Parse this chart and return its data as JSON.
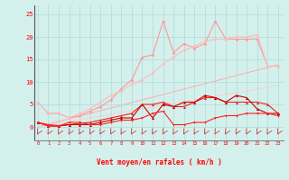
{
  "x": [
    0,
    1,
    2,
    3,
    4,
    5,
    6,
    7,
    8,
    9,
    10,
    11,
    12,
    13,
    14,
    15,
    16,
    17,
    18,
    19,
    20,
    21,
    22,
    23
  ],
  "background_color": "#d4f0ec",
  "grid_color": "#aaddda",
  "line_pink_spiky_y": [
    5.5,
    3.0,
    3.0,
    2.0,
    2.5,
    3.5,
    4.5,
    6.0,
    8.5,
    10.5,
    15.5,
    16.0,
    23.5,
    16.5,
    18.5,
    17.5,
    18.5,
    23.5,
    19.5,
    19.5,
    19.5,
    19.5,
    13.5,
    13.5
  ],
  "line_pink_spiky_color": "#ff9999",
  "line_pink_smooth_y": [
    5.5,
    3.0,
    3.0,
    2.0,
    3.0,
    4.0,
    5.5,
    7.0,
    8.0,
    9.5,
    10.5,
    12.0,
    14.0,
    15.5,
    17.0,
    18.0,
    19.0,
    19.5,
    19.5,
    20.0,
    20.0,
    20.5,
    13.5,
    13.5
  ],
  "line_pink_smooth_color": "#ffbbbb",
  "line_diag1_y": [
    0.0,
    0.6,
    1.2,
    1.8,
    2.4,
    3.0,
    3.6,
    4.2,
    4.8,
    5.4,
    6.0,
    6.6,
    7.2,
    7.8,
    8.4,
    9.0,
    9.6,
    10.2,
    10.8,
    11.4,
    12.0,
    12.6,
    13.2,
    13.8
  ],
  "line_diag1_color": "#ffaaaa",
  "line_diag2_y": [
    0.0,
    0.4,
    0.8,
    1.2,
    1.6,
    2.0,
    2.4,
    2.8,
    3.2,
    3.6,
    4.0,
    4.4,
    4.8,
    5.2,
    5.6,
    6.0,
    6.4,
    6.8,
    7.2,
    7.6,
    8.0,
    8.4,
    8.8,
    9.2
  ],
  "line_diag2_color": "#ffcccc",
  "line_red1_y": [
    1.0,
    0.5,
    0.3,
    0.5,
    0.8,
    1.0,
    1.5,
    2.0,
    2.5,
    3.0,
    5.0,
    5.0,
    5.5,
    4.5,
    4.5,
    5.5,
    6.5,
    6.5,
    5.5,
    5.5,
    5.5,
    5.5,
    5.0,
    3.0
  ],
  "line_red1_color": "#ee2222",
  "line_red2_y": [
    1.0,
    0.2,
    0.2,
    0.5,
    0.5,
    0.5,
    1.0,
    1.5,
    2.0,
    2.0,
    5.0,
    2.0,
    5.0,
    4.5,
    5.5,
    5.5,
    7.0,
    6.5,
    5.5,
    7.0,
    6.5,
    4.0,
    3.0,
    3.0
  ],
  "line_red2_color": "#cc0000",
  "line_red3_y": [
    1.0,
    0.2,
    0.2,
    1.0,
    1.0,
    0.5,
    0.5,
    1.0,
    1.5,
    1.5,
    2.0,
    3.0,
    3.5,
    0.5,
    0.5,
    1.0,
    1.0,
    2.0,
    2.5,
    2.5,
    3.0,
    3.0,
    3.0,
    2.5
  ],
  "line_red3_color": "#ff2222",
  "xlabel": "Vent moyen/en rafales ( km/h )",
  "yticks": [
    0,
    5,
    10,
    15,
    20,
    25
  ],
  "ylim": [
    -3.0,
    27
  ],
  "xlim": [
    -0.3,
    23.5
  ]
}
